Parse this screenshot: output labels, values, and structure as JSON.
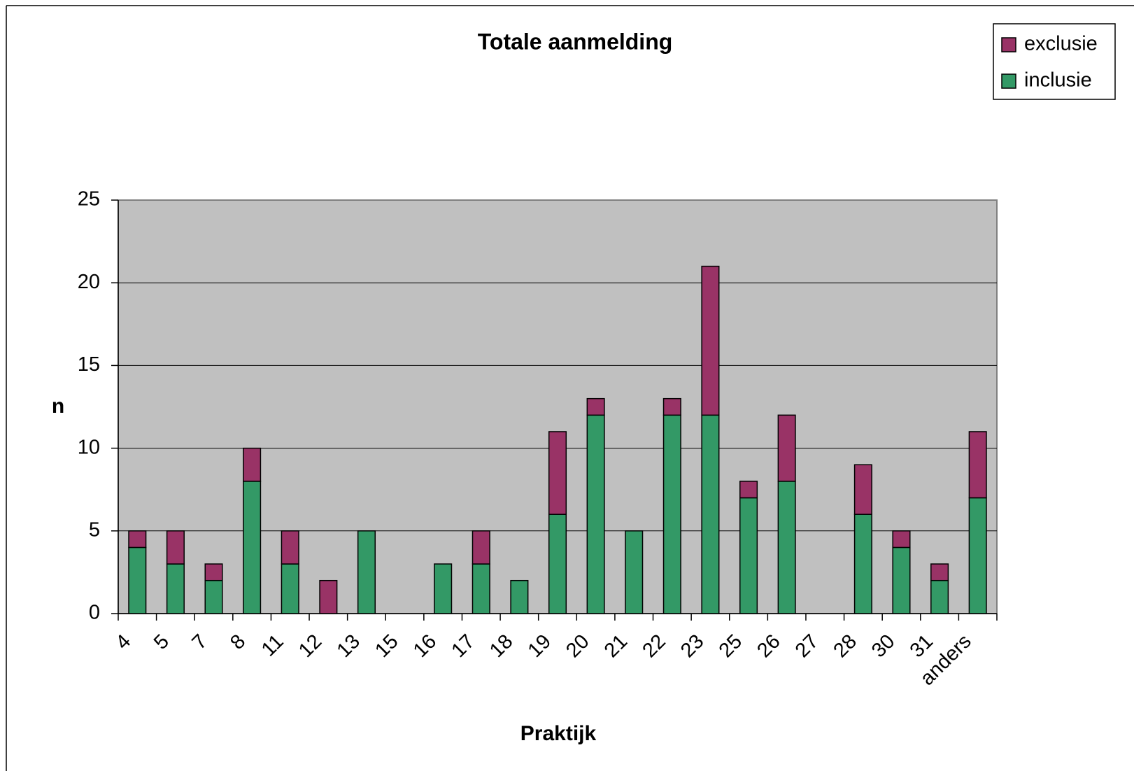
{
  "chart_data": {
    "type": "stacked_bar",
    "title": "Totale aanmelding",
    "x_label": "Praktijk",
    "y_label": "n",
    "categories": [
      "4",
      "5",
      "7",
      "8",
      "11",
      "12",
      "13",
      "15",
      "16",
      "17",
      "18",
      "19",
      "20",
      "21",
      "22",
      "23",
      "25",
      "26",
      "27",
      "28",
      "30",
      "31",
      "anders"
    ],
    "series": [
      {
        "name": "inclusie",
        "color": "#339966",
        "values": [
          4,
          3,
          2,
          8,
          3,
          0,
          5,
          0,
          3,
          3,
          2,
          6,
          12,
          5,
          12,
          12,
          7,
          8,
          0,
          6,
          4,
          2,
          7
        ]
      },
      {
        "name": "exclusie",
        "color": "#993366",
        "values": [
          1,
          2,
          1,
          2,
          2,
          2,
          0,
          0,
          0,
          2,
          0,
          5,
          1,
          0,
          1,
          9,
          1,
          4,
          0,
          3,
          1,
          1,
          4
        ]
      }
    ],
    "ylim": [
      0,
      25
    ],
    "yticks": [
      0,
      5,
      10,
      15,
      20,
      25
    ],
    "grid": true,
    "legend": "top-right"
  }
}
